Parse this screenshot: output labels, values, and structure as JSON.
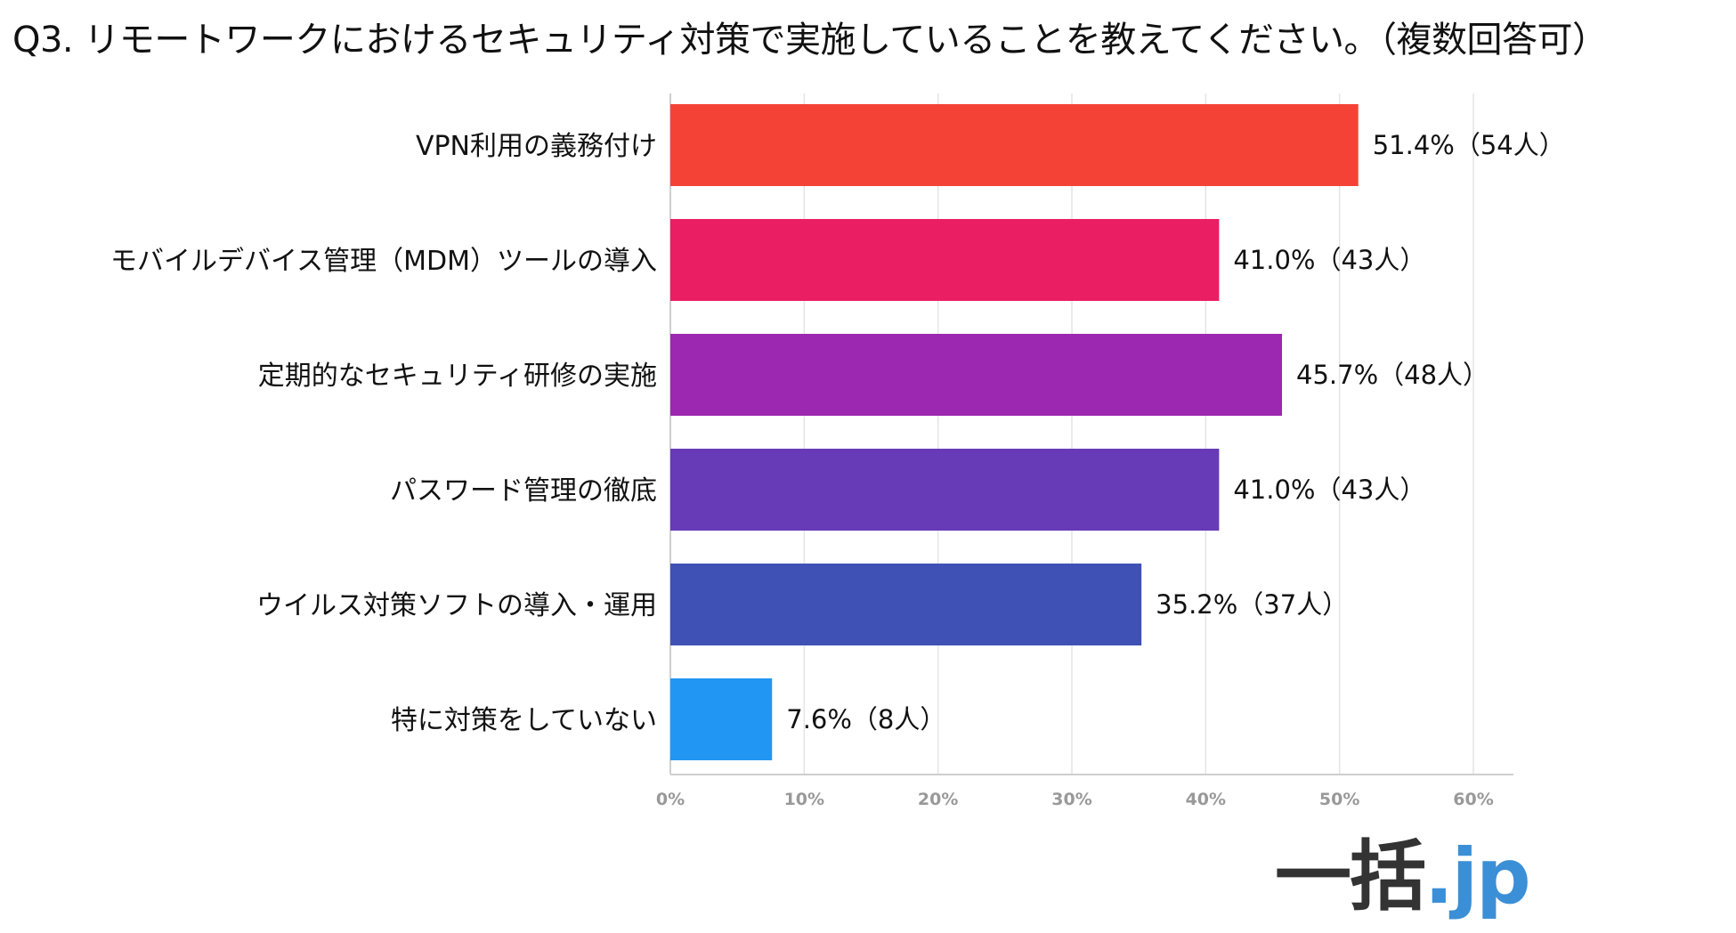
{
  "title": "Q3. リモートワークにおけるセキュリティ対策で実施していることを教えてください。（複数回答可）",
  "logo": {
    "main": "一括",
    "accent": ".jp",
    "main_color": "#333333",
    "accent_color": "#3b8fd6"
  },
  "chart_data": {
    "type": "bar",
    "orientation": "horizontal",
    "title": "Q3. リモートワークにおけるセキュリティ対策で実施していることを教えてください。（複数回答可）",
    "categories": [
      "VPN利用の義務付け",
      "モバイルデバイス管理（MDM）ツールの導入",
      "定期的なセキュリティ研修の実施",
      "パスワード管理の徹底",
      "ウイルス対策ソフトの導入・運用",
      "特に対策をしていない"
    ],
    "values": [
      51.4,
      41.0,
      45.7,
      41.0,
      35.2,
      7.6
    ],
    "data_labels": [
      "51.4%（54人）",
      "41.0%（43人）",
      "45.7%（48人）",
      "41.0%（43人）",
      "35.2%（37人）",
      "7.6%（8人）"
    ],
    "colors": [
      "#f44336",
      "#e91e63",
      "#9c27b0",
      "#673ab7",
      "#3f51b5",
      "#2196f3"
    ],
    "xlim": [
      0,
      60
    ],
    "xticks": [
      "0%",
      "10%",
      "20%",
      "30%",
      "40%",
      "50%",
      "60%"
    ],
    "grid": true,
    "legend": "none",
    "xlabel": "",
    "ylabel": ""
  }
}
